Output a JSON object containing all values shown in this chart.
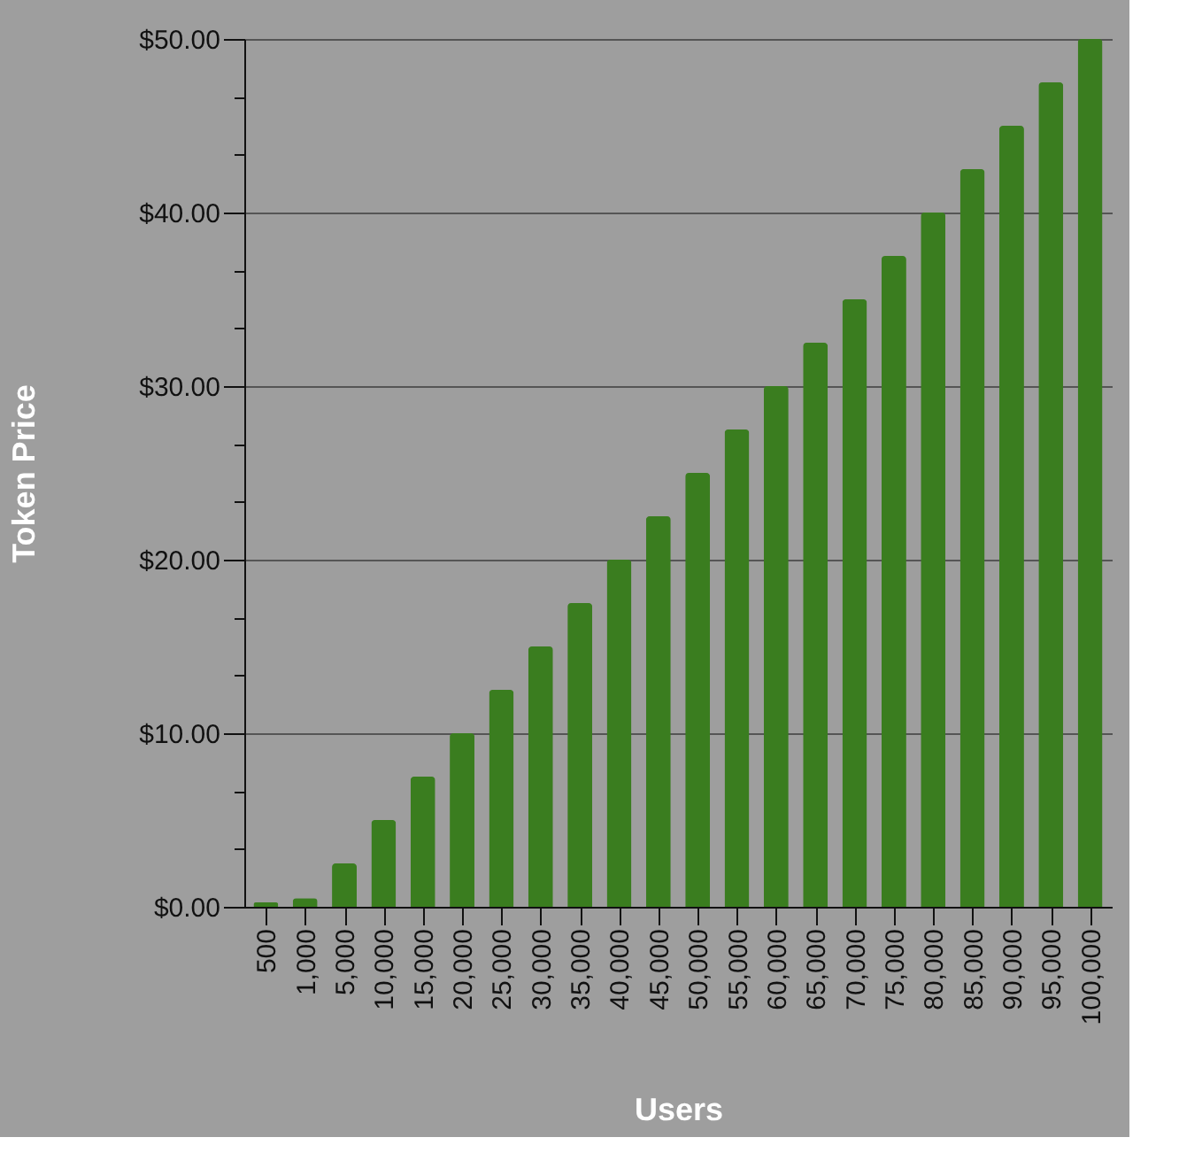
{
  "chart_data": {
    "type": "bar",
    "xlabel": "Users",
    "ylabel": "Token Price",
    "categories": [
      "500",
      "1,000",
      "5,000",
      "10,000",
      "15,000",
      "20,000",
      "25,000",
      "30,000",
      "35,000",
      "40,000",
      "45,000",
      "50,000",
      "55,000",
      "60,000",
      "65,000",
      "70,000",
      "75,000",
      "80,000",
      "85,000",
      "90,000",
      "95,000",
      "100,000"
    ],
    "values": [
      0.25,
      0.5,
      2.5,
      5,
      7.5,
      10,
      12.5,
      15,
      17.5,
      20,
      22.5,
      25,
      27.5,
      30,
      32.5,
      35,
      37.5,
      40,
      42.5,
      45,
      47.5,
      50
    ],
    "color": "#3a7d1f",
    "ylim": [
      0,
      50
    ],
    "yticks": [
      {
        "value": 0,
        "label": "$0.00"
      },
      {
        "value": 3.33,
        "label": null
      },
      {
        "value": 6.67,
        "label": null
      },
      {
        "value": 10,
        "label": "$10.00"
      },
      {
        "value": 13.33,
        "label": null
      },
      {
        "value": 16.67,
        "label": null
      },
      {
        "value": 20,
        "label": "$20.00"
      },
      {
        "value": 23.33,
        "label": null
      },
      {
        "value": 26.67,
        "label": null
      },
      {
        "value": 30,
        "label": "$30.00"
      },
      {
        "value": 33.33,
        "label": null
      },
      {
        "value": 36.67,
        "label": null
      },
      {
        "value": 40,
        "label": "$40.00"
      },
      {
        "value": 43.33,
        "label": null
      },
      {
        "value": 46.67,
        "label": null
      },
      {
        "value": 50,
        "label": "$50.00"
      }
    ],
    "grid": "y"
  }
}
